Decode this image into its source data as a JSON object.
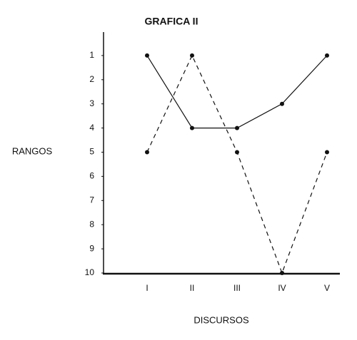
{
  "chart_data": {
    "type": "line",
    "title": "GRAFICA II",
    "y_label": "RANGOS",
    "x_label": "DISCURSOS",
    "categories": [
      "I",
      "II",
      "III",
      "IV",
      "V"
    ],
    "series": [
      {
        "color": "#111111",
        "dash": "solid",
        "values": [
          1,
          4,
          4,
          3,
          1
        ]
      },
      {
        "color": "#111111",
        "dash": "dashed",
        "values": [
          5,
          1,
          5,
          10,
          5
        ]
      }
    ],
    "ylim": [
      10,
      0
    ],
    "yticks": [
      1,
      2,
      3,
      4,
      5,
      6,
      7,
      8,
      9,
      10
    ],
    "grid": false
  }
}
